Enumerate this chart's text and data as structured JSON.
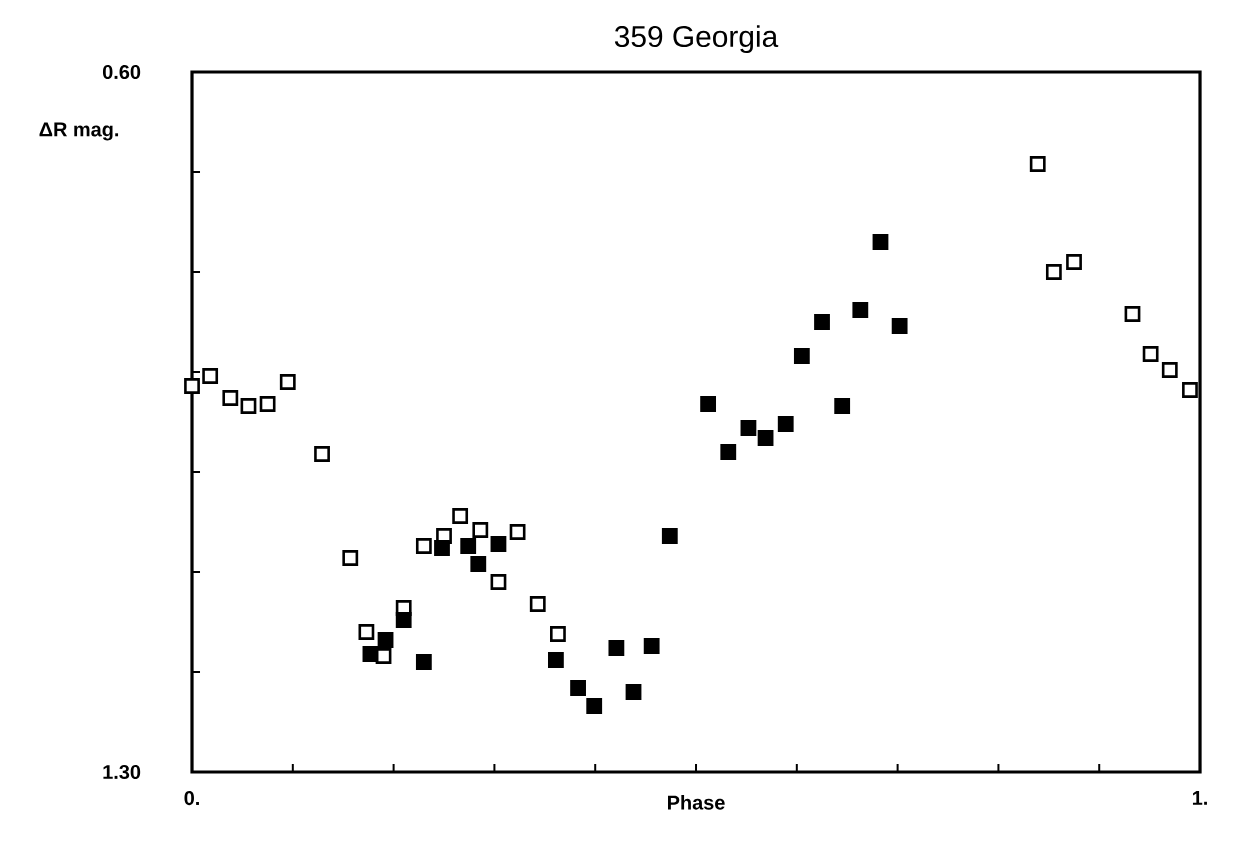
{
  "chart_data": {
    "type": "scatter",
    "title": "359 Georgia",
    "xlabel": "Phase",
    "ylabel": "ΔR mag.",
    "xlim": [
      0,
      1
    ],
    "ylim": [
      1.3,
      0.6
    ],
    "xticks": [
      {
        "value": 0,
        "label": "0."
      },
      {
        "value": 0.1,
        "label": null
      },
      {
        "value": 0.2,
        "label": null
      },
      {
        "value": 0.3,
        "label": null
      },
      {
        "value": 0.4,
        "label": null
      },
      {
        "value": 0.5,
        "label": null
      },
      {
        "value": 0.6,
        "label": null
      },
      {
        "value": 0.7,
        "label": null
      },
      {
        "value": 0.8,
        "label": null
      },
      {
        "value": 0.9,
        "label": null
      },
      {
        "value": 1,
        "label": "1."
      }
    ],
    "yticks": [
      {
        "value": 0.6,
        "label": "0.60"
      },
      {
        "value": 0.7,
        "label": null
      },
      {
        "value": 0.8,
        "label": null
      },
      {
        "value": 0.9,
        "label": null
      },
      {
        "value": 1.0,
        "label": null
      },
      {
        "value": 1.1,
        "label": null
      },
      {
        "value": 1.2,
        "label": null
      },
      {
        "value": 1.3,
        "label": "1.30"
      }
    ],
    "marker": "square",
    "grid": false,
    "series": [
      {
        "color": "#000000",
        "x": [
          0.0,
          0.018,
          0.038,
          0.056,
          0.075,
          0.095,
          0.129,
          0.157,
          0.173,
          0.19,
          0.21,
          0.23,
          0.25,
          0.266,
          0.286,
          0.304,
          0.323,
          0.343,
          0.363,
          0.839,
          0.855,
          0.875,
          0.933,
          0.951,
          0.97,
          0.99
        ],
        "values": [
          0.914,
          0.904,
          0.926,
          0.934,
          0.932,
          0.91,
          0.982,
          1.086,
          1.16,
          1.184,
          1.136,
          1.074,
          1.064,
          1.044,
          1.058,
          1.11,
          1.06,
          1.132,
          1.162,
          0.692,
          0.8,
          0.79,
          0.842,
          0.882,
          0.898,
          0.918
        ]
      },
      {
        "color": "#000000",
        "x": [
          0.177,
          0.192,
          0.21,
          0.23,
          0.248,
          0.274,
          0.284,
          0.304,
          0.361,
          0.383,
          0.399,
          0.421,
          0.438,
          0.456,
          0.474,
          0.512,
          0.532,
          0.552,
          0.569,
          0.589,
          0.605,
          0.625,
          0.645,
          0.663,
          0.683,
          0.702
        ],
        "values": [
          1.182,
          1.168,
          1.148,
          1.19,
          1.076,
          1.074,
          1.092,
          1.072,
          1.188,
          1.216,
          1.234,
          1.176,
          1.22,
          1.174,
          1.064,
          0.932,
          0.98,
          0.956,
          0.966,
          0.952,
          0.884,
          0.85,
          0.934,
          0.838,
          0.77,
          0.854
        ]
      }
    ]
  }
}
